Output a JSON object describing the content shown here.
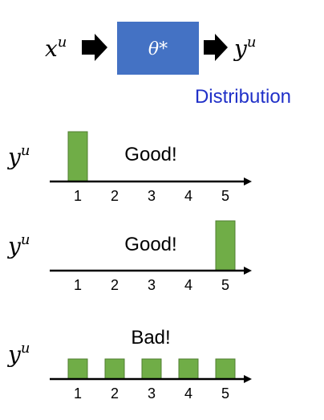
{
  "pipeline": {
    "input_label": "x",
    "input_sup": "u",
    "model_label": "θ*",
    "output_label": "y",
    "output_sup": "u",
    "output_caption": "Distribution",
    "colors": {
      "box": "#4472c4",
      "caption": "#2030c8",
      "arrow": "#000000"
    }
  },
  "cases": [
    {
      "ylabel": "y",
      "ylabel_sup": "u",
      "verdict": "Good!",
      "categories": [
        "1",
        "2",
        "3",
        "4",
        "5"
      ],
      "values": [
        1.0,
        0,
        0,
        0,
        0
      ]
    },
    {
      "ylabel": "y",
      "ylabel_sup": "u",
      "verdict": "Good!",
      "categories": [
        "1",
        "2",
        "3",
        "4",
        "5"
      ],
      "values": [
        0,
        0,
        0,
        0,
        1.0
      ]
    },
    {
      "ylabel": "y",
      "ylabel_sup": "u",
      "verdict": "Bad!",
      "categories": [
        "1",
        "2",
        "3",
        "4",
        "5"
      ],
      "values": [
        0.2,
        0.2,
        0.2,
        0.2,
        0.2
      ]
    }
  ],
  "chart_data": [
    {
      "type": "bar",
      "categories": [
        "1",
        "2",
        "3",
        "4",
        "5"
      ],
      "values": [
        1.0,
        0,
        0,
        0,
        0
      ],
      "title": "Good!",
      "ylabel": "yu"
    },
    {
      "type": "bar",
      "categories": [
        "1",
        "2",
        "3",
        "4",
        "5"
      ],
      "values": [
        0,
        0,
        0,
        0,
        1.0
      ],
      "title": "Good!",
      "ylabel": "yu"
    },
    {
      "type": "bar",
      "categories": [
        "1",
        "2",
        "3",
        "4",
        "5"
      ],
      "values": [
        0.2,
        0.2,
        0.2,
        0.2,
        0.2
      ],
      "title": "Bad!",
      "ylabel": "yu"
    }
  ],
  "bar_color": "#70ad47",
  "bar_edge_color": "#507e32"
}
